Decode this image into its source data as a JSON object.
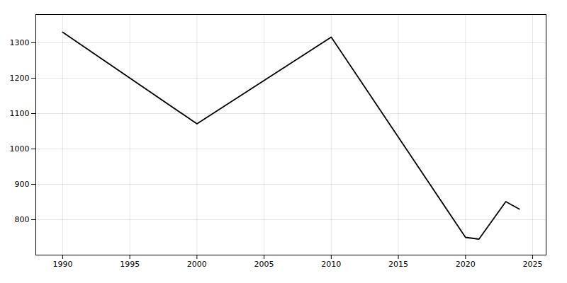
{
  "chart_data": {
    "type": "line",
    "x": [
      1990,
      2000,
      2010,
      2020,
      2021,
      2023,
      2024
    ],
    "values": [
      1330,
      1071,
      1316,
      750,
      745,
      851,
      830
    ],
    "xlim": [
      1988,
      2026
    ],
    "ylim": [
      700,
      1380
    ],
    "xticks": [
      1990,
      1995,
      2000,
      2005,
      2010,
      2015,
      2020,
      2025
    ],
    "yticks": [
      800,
      900,
      1000,
      1100,
      1200,
      1300
    ],
    "grid": true
  }
}
